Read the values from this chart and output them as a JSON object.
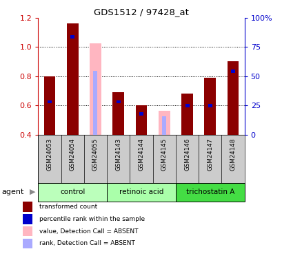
{
  "title": "GDS1512 / 97428_at",
  "samples": [
    "GSM24053",
    "GSM24054",
    "GSM24055",
    "GSM24143",
    "GSM24144",
    "GSM24145",
    "GSM24146",
    "GSM24147",
    "GSM24148"
  ],
  "red_values": [
    0.8,
    1.16,
    null,
    0.69,
    0.6,
    null,
    0.68,
    0.79,
    0.9
  ],
  "blue_values": [
    0.625,
    1.07,
    null,
    0.625,
    0.545,
    null,
    0.6,
    0.6,
    0.835
  ],
  "pink_values": [
    null,
    null,
    1.025,
    null,
    null,
    0.565,
    null,
    null,
    null
  ],
  "lavender_values": [
    null,
    null,
    0.835,
    null,
    null,
    0.525,
    null,
    null,
    null
  ],
  "ylim": [
    0.4,
    1.2
  ],
  "yticks": [
    0.4,
    0.6,
    0.8,
    1.0,
    1.2
  ],
  "right_yticks": [
    0,
    25,
    50,
    75,
    100
  ],
  "right_ytick_labels": [
    "0",
    "25",
    "50",
    "75",
    "100%"
  ],
  "bar_width": 0.5,
  "blue_bar_width": 0.18,
  "red_color": "#8B0000",
  "blue_color": "#0000CC",
  "pink_color": "#FFB6C1",
  "lavender_color": "#aaaaff",
  "legend_items": [
    {
      "color": "#8B0000",
      "label": "transformed count"
    },
    {
      "color": "#0000CC",
      "label": "percentile rank within the sample"
    },
    {
      "color": "#FFB6C1",
      "label": "value, Detection Call = ABSENT"
    },
    {
      "color": "#aaaaff",
      "label": "rank, Detection Call = ABSENT"
    }
  ],
  "ylabel_left_color": "#CC0000",
  "ylabel_right_color": "#0000CC",
  "background_color": "#ffffff",
  "agent_label": "agent",
  "grp_data": [
    [
      0,
      3,
      "control",
      "#bbffbb"
    ],
    [
      3,
      6,
      "retinoic acid",
      "#aaffaa"
    ],
    [
      6,
      9,
      "trichostatin A",
      "#44dd44"
    ]
  ],
  "sample_bg": "#cccccc",
  "dotted_lines": [
    0.6,
    0.8,
    1.0
  ]
}
